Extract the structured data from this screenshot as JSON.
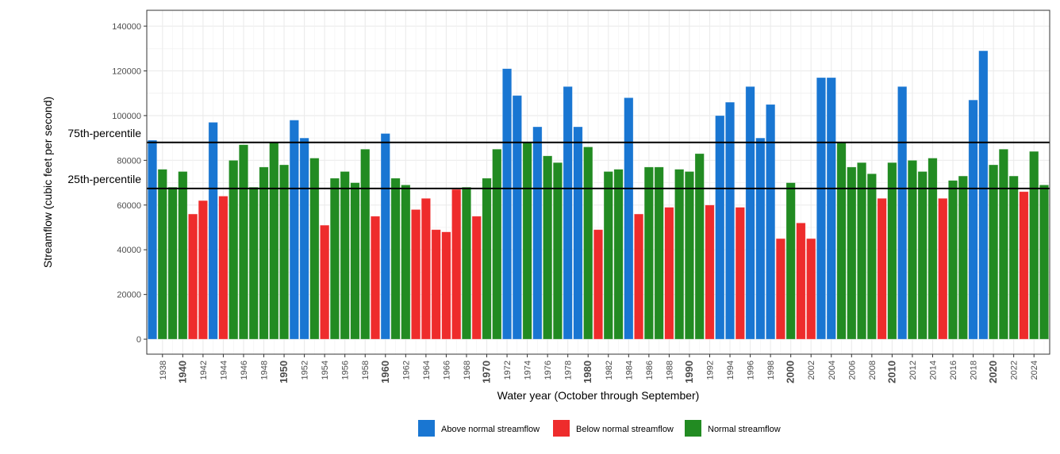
{
  "chart_data": {
    "type": "bar",
    "title": "",
    "xlabel": "Water year (October through September)",
    "ylabel": "Streamflow (cubic feet per second)",
    "ylim": [
      -6700,
      147100
    ],
    "xlim": [
      1936.45,
      2025.55
    ],
    "grid": true,
    "yticks": [
      0,
      20000,
      40000,
      60000,
      80000,
      100000,
      120000,
      140000
    ],
    "xticks": [
      1938,
      1940,
      1942,
      1944,
      1946,
      1948,
      1950,
      1952,
      1954,
      1956,
      1958,
      1960,
      1962,
      1964,
      1966,
      1968,
      1970,
      1972,
      1974,
      1976,
      1978,
      1980,
      1982,
      1984,
      1986,
      1988,
      1990,
      1992,
      1994,
      1996,
      1998,
      2000,
      2002,
      2004,
      2006,
      2008,
      2010,
      2012,
      2014,
      2016,
      2018,
      2020,
      2022,
      2024
    ],
    "bold_xticks": [
      1940,
      1950,
      1960,
      1970,
      1980,
      1990,
      2000,
      2010,
      2020
    ],
    "reference_lines": [
      {
        "label": "75th-percentile",
        "value": 88000
      },
      {
        "label": "25th-percentile",
        "value": 67400
      }
    ],
    "legend_position": "bottom",
    "categories": {
      "A": {
        "name": "Above normal streamflow",
        "color": "#1976D2"
      },
      "B": {
        "name": "Below normal streamflow",
        "color": "#EE2C2C"
      },
      "N": {
        "name": "Normal streamflow",
        "color": "#228B22"
      }
    },
    "legend_order": [
      "A",
      "B",
      "N"
    ],
    "years": [
      1937,
      1938,
      1939,
      1940,
      1941,
      1942,
      1943,
      1944,
      1945,
      1946,
      1947,
      1948,
      1949,
      1950,
      1951,
      1952,
      1953,
      1954,
      1955,
      1956,
      1957,
      1958,
      1959,
      1960,
      1961,
      1962,
      1963,
      1964,
      1965,
      1966,
      1967,
      1968,
      1969,
      1970,
      1971,
      1972,
      1973,
      1974,
      1975,
      1976,
      1977,
      1978,
      1979,
      1980,
      1981,
      1982,
      1983,
      1984,
      1985,
      1986,
      1987,
      1988,
      1989,
      1990,
      1991,
      1992,
      1993,
      1994,
      1995,
      1996,
      1997,
      1998,
      1999,
      2000,
      2001,
      2002,
      2003,
      2004,
      2005,
      2006,
      2007,
      2008,
      2009,
      2010,
      2011,
      2012,
      2013,
      2014,
      2015,
      2016,
      2017,
      2018,
      2019,
      2020,
      2021,
      2022,
      2023,
      2024,
      2025
    ],
    "values": [
      89000,
      76000,
      68000,
      75000,
      56000,
      62000,
      97000,
      64000,
      80000,
      87000,
      68000,
      77000,
      88000,
      78000,
      98000,
      90000,
      81000,
      51000,
      72000,
      75000,
      70000,
      85000,
      55000,
      92000,
      72000,
      69000,
      58000,
      63000,
      49000,
      48000,
      67000,
      68000,
      55000,
      72000,
      85000,
      121000,
      109000,
      88000,
      95000,
      82000,
      79000,
      113000,
      95000,
      86000,
      49000,
      75000,
      76000,
      108000,
      56000,
      77000,
      77000,
      59000,
      76000,
      75000,
      83000,
      60000,
      100000,
      106000,
      59000,
      113000,
      90000,
      105000,
      45000,
      70000,
      52000,
      45000,
      117000,
      117000,
      88000,
      77000,
      79000,
      74000,
      63000,
      79000,
      113000,
      80000,
      75000,
      81000,
      63000,
      71000,
      73000,
      107000,
      129000,
      78000,
      85000,
      73000,
      66000,
      84000,
      69000
    ],
    "classes": [
      "A",
      "N",
      "N",
      "N",
      "B",
      "B",
      "A",
      "B",
      "N",
      "N",
      "N",
      "N",
      "N",
      "N",
      "A",
      "A",
      "N",
      "B",
      "N",
      "N",
      "N",
      "N",
      "B",
      "A",
      "N",
      "N",
      "B",
      "B",
      "B",
      "B",
      "B",
      "N",
      "B",
      "N",
      "N",
      "A",
      "A",
      "N",
      "A",
      "N",
      "N",
      "A",
      "A",
      "N",
      "B",
      "N",
      "N",
      "A",
      "B",
      "N",
      "N",
      "B",
      "N",
      "N",
      "N",
      "B",
      "A",
      "A",
      "B",
      "A",
      "A",
      "A",
      "B",
      "N",
      "B",
      "B",
      "A",
      "A",
      "N",
      "N",
      "N",
      "N",
      "B",
      "N",
      "A",
      "N",
      "N",
      "N",
      "B",
      "N",
      "N",
      "A",
      "A",
      "N",
      "N",
      "N",
      "B",
      "N",
      "N"
    ]
  }
}
